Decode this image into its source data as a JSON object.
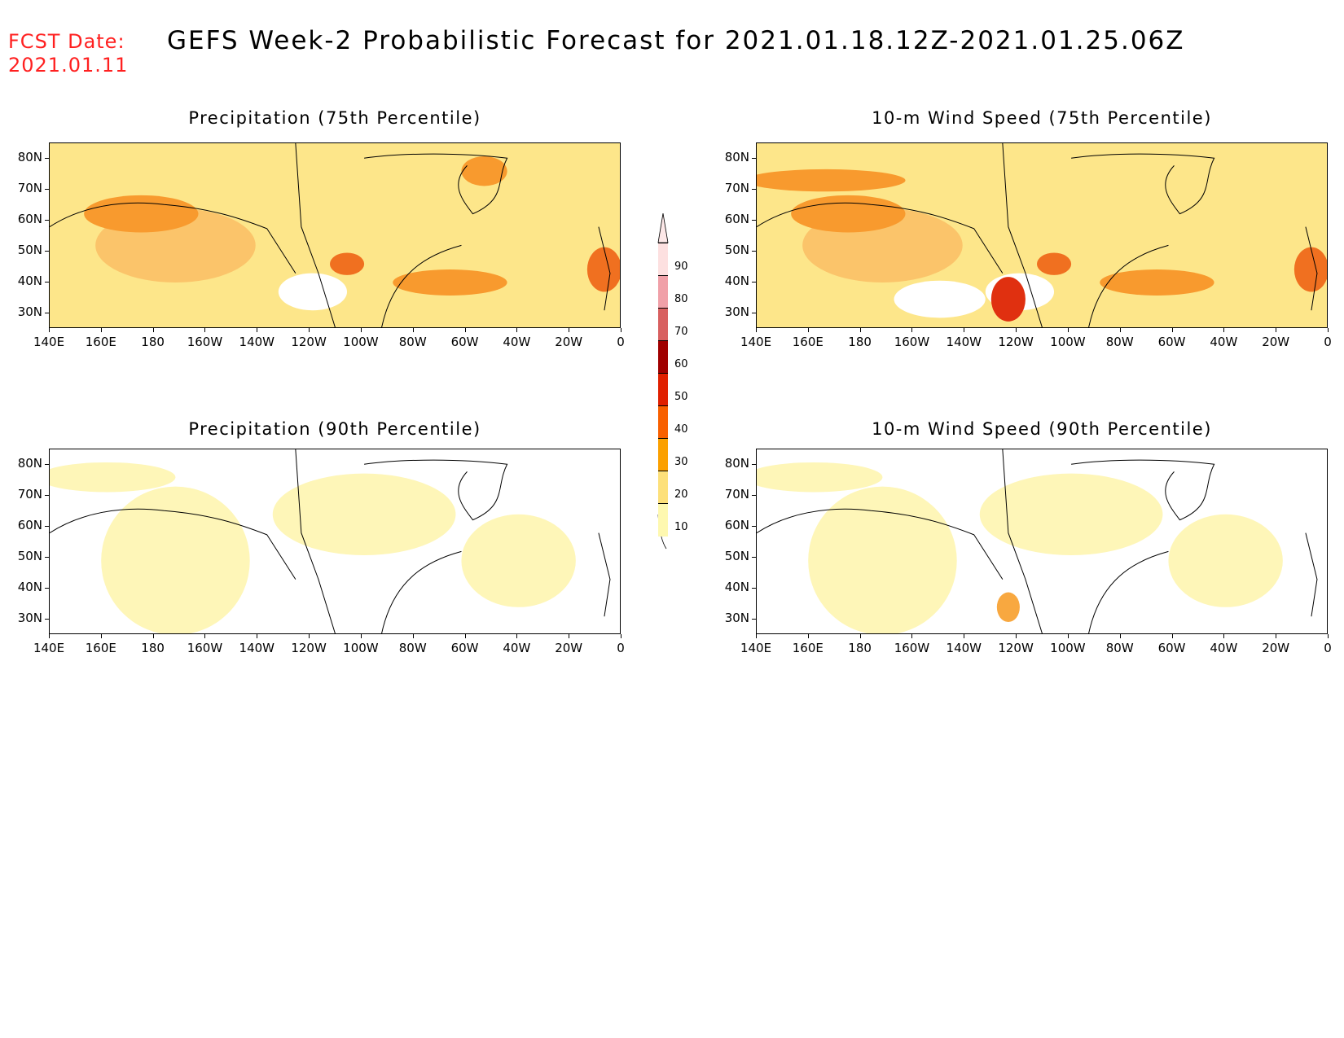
{
  "header": {
    "fcst_label": "FCST Date:",
    "fcst_date": "2021.01.11",
    "title": "GEFS Week-2 Probabilistic Forecast for 2021.01.18.12Z-2021.01.25.06Z"
  },
  "axes": {
    "lat_labels": [
      "80N",
      "70N",
      "60N",
      "50N",
      "40N",
      "30N"
    ],
    "lon_labels": [
      "140E",
      "160E",
      "180",
      "160W",
      "140W",
      "120W",
      "100W",
      "80W",
      "60W",
      "40W",
      "20W",
      "0"
    ]
  },
  "panels": [
    {
      "title": "Precipitation (75th Percentile)"
    },
    {
      "title": "10-m Wind Speed (75th Percentile)"
    },
    {
      "title": "Precipitation (90th Percentile)"
    },
    {
      "title": "10-m Wind Speed (90th Percentile)"
    }
  ],
  "colorbar": {
    "labels": [
      "90",
      "80",
      "70",
      "60",
      "50",
      "40",
      "30",
      "20",
      "10"
    ],
    "colors": [
      "#fde0e0",
      "#f0a0a8",
      "#d86060",
      "#a00000",
      "#e02000",
      "#f86000",
      "#fba000",
      "#fde07a",
      "#fef8b0"
    ]
  }
}
